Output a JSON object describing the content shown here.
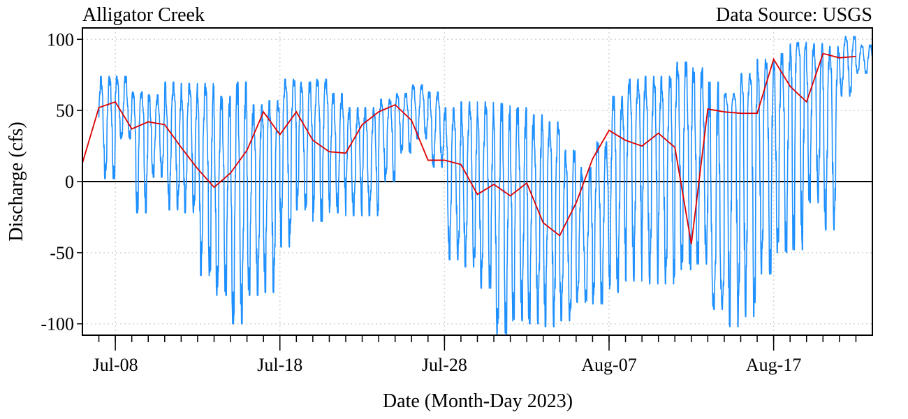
{
  "chart_data": {
    "type": "line",
    "title": "Alligator Creek",
    "source_note": "Data Source: USGS",
    "xlabel": "Date (Month-Day 2023)",
    "ylabel": "Discharge (cfs)",
    "x_range": [
      "2023-07-06",
      "2023-08-23"
    ],
    "ylim": [
      -108,
      108
    ],
    "x_tick_labels": [
      {
        "date": "2023-07-08",
        "label": "Jul-08"
      },
      {
        "date": "2023-07-18",
        "label": "Jul-18"
      },
      {
        "date": "2023-07-28",
        "label": "Jul-28"
      },
      {
        "date": "2023-08-07",
        "label": "Aug-07"
      },
      {
        "date": "2023-08-17",
        "label": "Aug-17"
      }
    ],
    "minor_tick_interval_days": 1,
    "y_ticks": [
      100,
      50,
      0,
      -50,
      -100
    ],
    "y_tick_labels": [
      "100",
      "50",
      "0",
      "-50",
      "-100"
    ],
    "zero_line": true,
    "grid": true,
    "colors": {
      "discharge": "#1e90ff",
      "daily_mean": "#dd0000",
      "zero_line": "#000000"
    },
    "series": [
      {
        "key": "discharge",
        "samples_per_day": 96,
        "daily": [
          {
            "date": "2023-07-07",
            "mean": 45,
            "max": 74,
            "min": 2
          },
          {
            "date": "2023-07-08",
            "mean": 52,
            "max": 74,
            "min": 30
          },
          {
            "date": "2023-07-09",
            "mean": 44,
            "max": 63,
            "min": -22
          },
          {
            "date": "2023-07-10",
            "mean": 38,
            "max": 61,
            "min": 3
          },
          {
            "date": "2023-07-11",
            "mean": 40,
            "max": 70,
            "min": -20
          },
          {
            "date": "2023-07-12",
            "mean": 39,
            "max": 69,
            "min": -22
          },
          {
            "date": "2023-07-13",
            "mean": 30,
            "max": 69,
            "min": -66
          },
          {
            "date": "2023-07-14",
            "mean": 12,
            "max": 60,
            "min": -80
          },
          {
            "date": "2023-07-15",
            "mean": 3,
            "max": 70,
            "min": -100
          },
          {
            "date": "2023-07-16",
            "mean": 6,
            "max": 54,
            "min": -80
          },
          {
            "date": "2023-07-17",
            "mean": 20,
            "max": 57,
            "min": -78
          },
          {
            "date": "2023-07-18",
            "mean": 45,
            "max": 72,
            "min": -46
          },
          {
            "date": "2023-07-19",
            "mean": 35,
            "max": 70,
            "min": -20
          },
          {
            "date": "2023-07-20",
            "mean": 48,
            "max": 72,
            "min": -28
          },
          {
            "date": "2023-07-21",
            "mean": 30,
            "max": 62,
            "min": -22
          },
          {
            "date": "2023-07-22",
            "mean": 21,
            "max": 52,
            "min": -24
          },
          {
            "date": "2023-07-23",
            "mean": 22,
            "max": 52,
            "min": -24
          },
          {
            "date": "2023-07-24",
            "mean": 40,
            "max": 58,
            "min": 0
          },
          {
            "date": "2023-07-25",
            "mean": 49,
            "max": 62,
            "min": 20
          },
          {
            "date": "2023-07-26",
            "mean": 54,
            "max": 68,
            "min": 30
          },
          {
            "date": "2023-07-27",
            "mean": 44,
            "max": 63,
            "min": 10
          },
          {
            "date": "2023-07-28",
            "mean": 15,
            "max": 52,
            "min": -55
          },
          {
            "date": "2023-07-29",
            "mean": 14,
            "max": 56,
            "min": -60
          },
          {
            "date": "2023-07-30",
            "mean": 12,
            "max": 56,
            "min": -75
          },
          {
            "date": "2023-07-31",
            "mean": -9,
            "max": 55,
            "min": -108
          },
          {
            "date": "2023-08-01",
            "mean": -2,
            "max": 52,
            "min": -98
          },
          {
            "date": "2023-08-02",
            "mean": -10,
            "max": 47,
            "min": -100
          },
          {
            "date": "2023-08-03",
            "mean": -1,
            "max": 42,
            "min": -102
          },
          {
            "date": "2023-08-04",
            "mean": -29,
            "max": 22,
            "min": -98
          },
          {
            "date": "2023-08-05",
            "mean": -38,
            "max": 10,
            "min": -85
          },
          {
            "date": "2023-08-06",
            "mean": -15,
            "max": 28,
            "min": -86
          },
          {
            "date": "2023-08-07",
            "mean": 15,
            "max": 60,
            "min": -78
          },
          {
            "date": "2023-08-08",
            "mean": 36,
            "max": 72,
            "min": -70
          },
          {
            "date": "2023-08-09",
            "mean": 29,
            "max": 74,
            "min": -72
          },
          {
            "date": "2023-08-10",
            "mean": 25,
            "max": 74,
            "min": -72
          },
          {
            "date": "2023-08-11",
            "mean": 33,
            "max": 84,
            "min": -62
          },
          {
            "date": "2023-08-12",
            "mean": 24,
            "max": 80,
            "min": -58
          },
          {
            "date": "2023-08-13",
            "mean": -44,
            "max": 70,
            "min": -90
          },
          {
            "date": "2023-08-14",
            "mean": 51,
            "max": 62,
            "min": -102
          },
          {
            "date": "2023-08-15",
            "mean": 50,
            "max": 76,
            "min": -95
          },
          {
            "date": "2023-08-16",
            "mean": 48,
            "max": 86,
            "min": -65
          },
          {
            "date": "2023-08-17",
            "mean": 48,
            "max": 90,
            "min": -50
          },
          {
            "date": "2023-08-18",
            "mean": 86,
            "max": 98,
            "min": -48
          },
          {
            "date": "2023-08-19",
            "mean": 67,
            "max": 97,
            "min": -15
          },
          {
            "date": "2023-08-20",
            "mean": 56,
            "max": 95,
            "min": -34
          },
          {
            "date": "2023-08-21",
            "mean": 90,
            "max": 102,
            "min": 60
          },
          {
            "date": "2023-08-22",
            "mean": 87,
            "max": 96,
            "min": 76
          }
        ]
      },
      {
        "key": "daily_mean",
        "x": [
          "2023-07-06",
          "2023-07-07",
          "2023-07-08",
          "2023-07-09",
          "2023-07-10",
          "2023-07-11",
          "2023-07-12",
          "2023-07-13",
          "2023-07-14",
          "2023-07-15",
          "2023-07-16",
          "2023-07-17",
          "2023-07-18",
          "2023-07-19",
          "2023-07-20",
          "2023-07-21",
          "2023-07-22",
          "2023-07-23",
          "2023-07-24",
          "2023-07-25",
          "2023-07-26",
          "2023-07-27",
          "2023-07-28",
          "2023-07-29",
          "2023-07-30",
          "2023-07-31",
          "2023-08-01",
          "2023-08-02",
          "2023-08-03",
          "2023-08-04",
          "2023-08-05",
          "2023-08-06",
          "2023-08-07",
          "2023-08-08",
          "2023-08-09",
          "2023-08-10",
          "2023-08-11",
          "2023-08-12",
          "2023-08-13",
          "2023-08-14",
          "2023-08-15",
          "2023-08-16",
          "2023-08-17",
          "2023-08-18",
          "2023-08-19",
          "2023-08-20",
          "2023-08-21",
          "2023-08-22"
        ],
        "y": [
          13,
          52,
          56,
          37,
          42,
          40,
          24,
          9,
          -4,
          6,
          22,
          49,
          33,
          49,
          29,
          21,
          20,
          40,
          49,
          54,
          43,
          15,
          15,
          12,
          -9,
          -2,
          -10,
          -1,
          -29,
          -38,
          -15,
          16,
          36,
          29,
          25,
          34,
          24,
          -44,
          51,
          49,
          48,
          48,
          86,
          67,
          56,
          90,
          87,
          88
        ]
      }
    ]
  }
}
